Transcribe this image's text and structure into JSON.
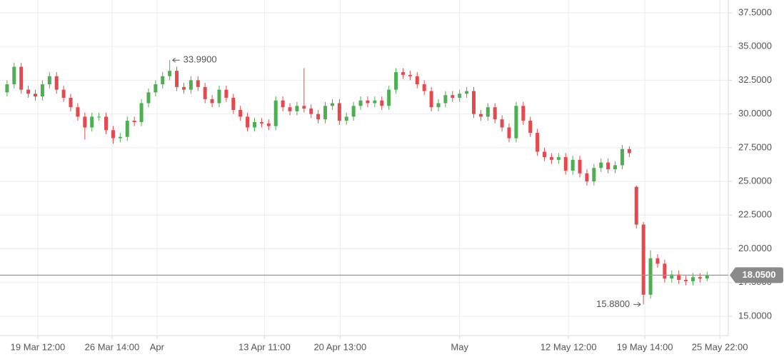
{
  "chart_data": {
    "type": "candlestick",
    "up_color": "#4caf50",
    "down_color": "#e5484d",
    "grid": true,
    "xlim": [
      -1,
      102
    ],
    "xticks": [
      {
        "value": 4.35,
        "label": "19 Mar 12:00"
      },
      {
        "value": 14.85,
        "label": "26 Mar 14:00"
      },
      {
        "value": 21.2,
        "label": "Apr"
      },
      {
        "value": 36.4,
        "label": "13 Apr 11:00"
      },
      {
        "value": 47.1,
        "label": "20 Apr 13:00"
      },
      {
        "value": 64,
        "label": "May"
      },
      {
        "value": 79.4,
        "label": "12 May 12:00"
      },
      {
        "value": 90.2,
        "label": "19 May 14:00"
      },
      {
        "value": 100.8,
        "label": "25 May 22:00"
      }
    ],
    "ylim": [
      13.57,
      38.45
    ],
    "yticks": [
      {
        "value": 15,
        "label": "15.0000"
      },
      {
        "value": 17.5,
        "label": "17.5000"
      },
      {
        "value": 20,
        "label": "20.0000"
      },
      {
        "value": 22.5,
        "label": "22.5000"
      },
      {
        "value": 25,
        "label": "25.0000"
      },
      {
        "value": 27.5,
        "label": "27.5000"
      },
      {
        "value": 30,
        "label": "30.0000"
      },
      {
        "value": 32.5,
        "label": "32.5000"
      },
      {
        "value": 35,
        "label": "35.0000"
      },
      {
        "value": 37.5,
        "label": "37.5000"
      }
    ],
    "open": [
      31.6,
      32.2,
      33.5,
      31.8,
      31.5,
      31.3,
      32.2,
      32.8,
      31.8,
      31.2,
      30.5,
      29.8,
      29.0,
      29.8,
      29.8,
      28.8,
      28.2,
      28.3,
      29.5,
      29.4,
      30.8,
      31.6,
      32.2,
      32.8,
      33.2,
      32.0,
      31.8,
      32.5,
      32.0,
      31.1,
      30.8,
      31.8,
      31.2,
      30.3,
      29.8,
      29.0,
      29.4,
      29.3,
      29.1,
      31.0,
      30.5,
      30.2,
      30.6,
      30.4,
      30.0,
      29.6,
      30.6,
      30.8,
      29.5,
      29.8,
      30.6,
      31.0,
      30.8,
      31.0,
      30.6,
      31.8,
      33.1,
      32.9,
      32.8,
      32.2,
      31.7,
      30.5,
      30.8,
      31.4,
      31.2,
      31.5,
      31.7,
      30.0,
      29.8,
      30.5,
      29.6,
      29.0,
      28.2,
      30.6,
      29.5,
      28.6,
      27.2,
      26.8,
      26.6,
      26.8,
      25.8,
      26.6,
      25.6,
      25.0,
      26.0,
      26.4,
      25.9,
      26.2,
      27.4,
      24.6,
      21.8,
      16.6,
      19.3,
      18.9,
      17.8,
      18.1,
      17.7,
      17.6,
      17.9,
      17.8
    ],
    "high": [
      32.5,
      33.8,
      33.8,
      32.1,
      31.8,
      32.5,
      33.1,
      33.1,
      32.1,
      31.5,
      30.8,
      30.1,
      30.1,
      30.1,
      30.1,
      29.1,
      28.6,
      29.8,
      29.8,
      31.1,
      31.9,
      32.5,
      33.1,
      33.99,
      33.5,
      32.3,
      32.8,
      32.8,
      32.3,
      31.4,
      32.1,
      32.1,
      31.5,
      30.6,
      30.1,
      29.7,
      29.7,
      29.6,
      31.3,
      31.3,
      30.8,
      30.9,
      33.4,
      30.7,
      30.3,
      30.9,
      31.1,
      31.1,
      30.1,
      30.9,
      31.3,
      31.3,
      31.3,
      31.3,
      32.1,
      33.4,
      33.4,
      33.2,
      33.1,
      32.5,
      32.0,
      31.1,
      31.7,
      31.7,
      31.8,
      32.0,
      32.0,
      30.3,
      30.8,
      30.8,
      29.9,
      29.3,
      30.9,
      30.9,
      29.8,
      28.9,
      27.5,
      27.1,
      27.1,
      27.1,
      26.9,
      26.9,
      25.9,
      26.3,
      26.7,
      26.7,
      26.5,
      27.7,
      27.6,
      24.7,
      22.0,
      19.9,
      19.6,
      19.2,
      18.4,
      18.4,
      18.0,
      18.2,
      18.2,
      18.3
    ],
    "low": [
      31.3,
      31.9,
      31.5,
      31.2,
      31.0,
      31.0,
      31.9,
      31.5,
      30.9,
      30.2,
      29.5,
      28.1,
      28.7,
      29.5,
      28.5,
      27.8,
      27.9,
      28.0,
      29.1,
      29.1,
      30.5,
      31.3,
      31.9,
      32.5,
      31.7,
      31.5,
      31.5,
      31.7,
      30.8,
      30.5,
      30.5,
      30.9,
      30.0,
      29.5,
      28.7,
      28.7,
      29.0,
      28.8,
      28.8,
      30.2,
      29.9,
      29.9,
      30.1,
      29.7,
      29.3,
      29.3,
      30.3,
      29.2,
      29.2,
      29.5,
      30.3,
      30.5,
      30.5,
      30.3,
      30.3,
      31.5,
      32.6,
      32.5,
      31.9,
      31.4,
      30.2,
      30.2,
      30.5,
      30.9,
      30.9,
      31.2,
      29.7,
      29.5,
      29.5,
      29.3,
      28.7,
      27.9,
      27.9,
      29.2,
      28.3,
      26.9,
      26.5,
      26.3,
      26.3,
      25.5,
      25.5,
      25.3,
      24.7,
      24.7,
      25.7,
      25.6,
      25.6,
      25.9,
      26.8,
      21.5,
      15.88,
      16.3,
      18.6,
      17.5,
      17.5,
      17.4,
      17.3,
      17.3,
      17.5,
      17.6
    ],
    "close": [
      32.2,
      33.5,
      31.8,
      31.5,
      31.3,
      32.2,
      32.8,
      31.8,
      31.2,
      30.5,
      29.8,
      29.0,
      29.8,
      29.8,
      28.8,
      28.2,
      28.3,
      29.5,
      29.4,
      30.8,
      31.6,
      32.2,
      32.8,
      33.2,
      32.0,
      31.8,
      32.5,
      32.0,
      31.1,
      30.8,
      31.8,
      31.2,
      30.3,
      29.8,
      29.0,
      29.4,
      29.3,
      29.1,
      31.0,
      30.5,
      30.2,
      30.6,
      30.4,
      30.0,
      29.6,
      30.6,
      30.8,
      29.5,
      29.8,
      30.6,
      31.0,
      30.8,
      31.0,
      30.6,
      31.8,
      33.1,
      32.9,
      32.8,
      32.2,
      31.7,
      30.5,
      30.8,
      31.4,
      31.2,
      31.5,
      31.7,
      30.0,
      29.8,
      30.5,
      29.6,
      29.0,
      28.2,
      30.6,
      29.5,
      28.6,
      27.2,
      26.8,
      26.6,
      26.8,
      25.8,
      26.6,
      25.6,
      25.0,
      26.0,
      26.4,
      25.9,
      26.2,
      27.4,
      27.1,
      21.8,
      16.6,
      19.3,
      18.9,
      17.8,
      18.1,
      17.7,
      17.6,
      17.9,
      17.8,
      18.05
    ],
    "max_label": {
      "value": 33.99,
      "label": "33.9900"
    },
    "min_label": {
      "value": 15.88,
      "label": "15.8800"
    },
    "last_price": {
      "value": 18.05,
      "label": "18.0500"
    }
  }
}
